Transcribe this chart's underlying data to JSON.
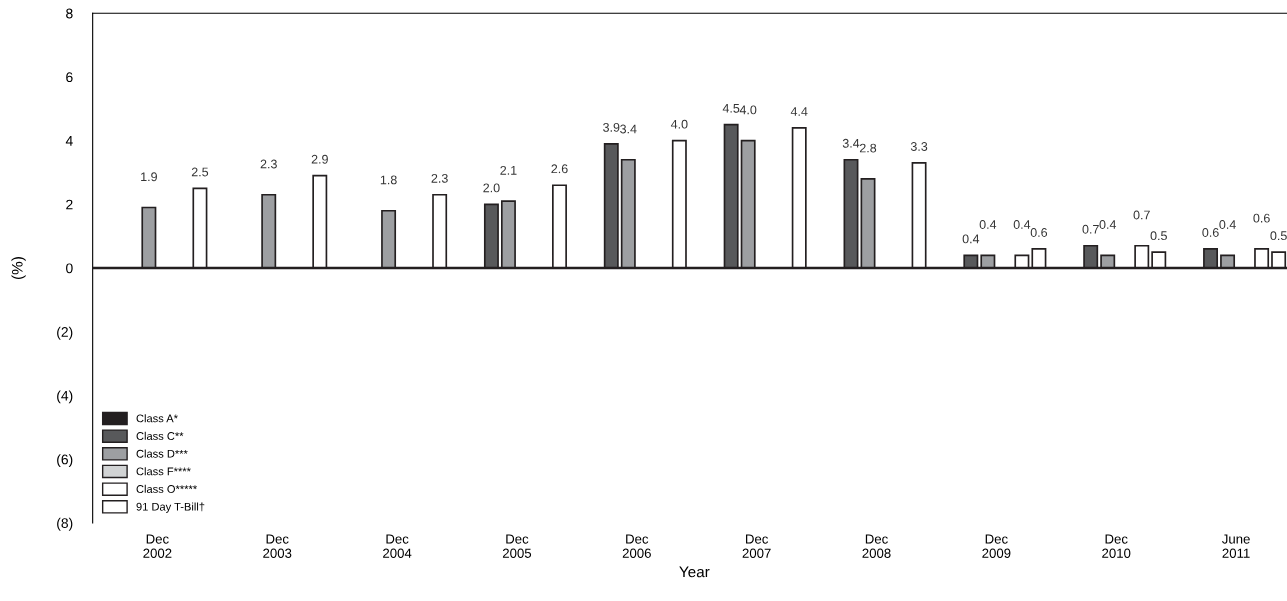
{
  "chart_data": {
    "type": "bar",
    "xlabel": "Year",
    "ylabel": "(%)",
    "categories": [
      "Dec\n2002",
      "Dec\n2003",
      "Dec\n2004",
      "Dec\n2005",
      "Dec\n2006",
      "Dec\n2007",
      "Dec\n2008",
      "Dec\n2009",
      "Dec\n2010",
      "June\n2011"
    ],
    "series": [
      {
        "name": "Class A*",
        "color": "#231f20",
        "values": [
          null,
          null,
          null,
          null,
          null,
          null,
          null,
          null,
          null,
          null
        ]
      },
      {
        "name": "Class C**",
        "color": "#58595b",
        "values": [
          null,
          null,
          null,
          2.0,
          3.9,
          4.5,
          3.4,
          0.4,
          0.7,
          0.6
        ],
        "value_labels": [
          null,
          null,
          null,
          "2.0",
          "3.9",
          "4.5",
          "3.4",
          "0.4",
          "0.7",
          "0.6"
        ]
      },
      {
        "name": "Class D***",
        "color": "#9d9fa2",
        "values": [
          1.9,
          2.3,
          1.8,
          2.1,
          3.4,
          4.0,
          2.8,
          0.4,
          0.4,
          0.4
        ],
        "value_labels": [
          "1.9",
          "2.3",
          "1.8",
          "2.1",
          "3.4",
          "4.0",
          "2.8",
          "0.4",
          "0.4",
          "0.4"
        ]
      },
      {
        "name": "Class F****",
        "color": "#d1d3d4",
        "values": [
          null,
          null,
          null,
          null,
          null,
          null,
          null,
          null,
          null,
          null
        ]
      },
      {
        "name": "Class O*****",
        "color": "#ffffff",
        "values": [
          null,
          null,
          null,
          null,
          null,
          null,
          null,
          0.4,
          0.7,
          0.6
        ],
        "value_labels": [
          null,
          null,
          null,
          null,
          null,
          null,
          null,
          "0.4",
          "0.7",
          "0.6"
        ]
      },
      {
        "name": "91 Day T-Bill†",
        "color": "#ffffff",
        "values": [
          2.5,
          2.9,
          2.3,
          2.6,
          4.0,
          4.4,
          3.3,
          0.6,
          0.5,
          0.5
        ],
        "value_labels": [
          "2.5",
          "2.9",
          "2.3",
          "2.6",
          "4.0",
          "4.4",
          "3.3",
          "0.6",
          "0.5",
          "0.5"
        ]
      }
    ],
    "ylim": [
      -8,
      8
    ],
    "yticks": [
      {
        "value": -8,
        "label": "(8)"
      },
      {
        "value": -6,
        "label": "(6)"
      },
      {
        "value": -4,
        "label": "(4)"
      },
      {
        "value": -2,
        "label": "(2)"
      },
      0,
      2,
      4,
      6,
      8
    ],
    "ref_lines": [
      {
        "axis": "y",
        "value": 0,
        "color": "#231f20"
      }
    ],
    "data_labels": true,
    "legend": "bottom left",
    "grid": false
  }
}
